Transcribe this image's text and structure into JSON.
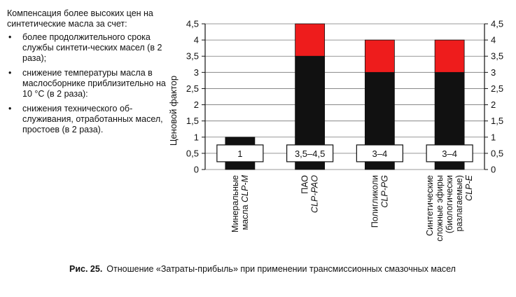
{
  "side_text": {
    "intro": "Компенсация более высоких цен на синтетические масла за счет:",
    "bullets": [
      "более продолжительного срока службы синтети-ческих масел (в 2 раза);",
      "снижение температуры масла в маслосборнике приблизительно на 10 °С (в 2 раза):",
      "снижения технического об-служивания, отработанных масел, простоев (в 2 раза)."
    ]
  },
  "caption": {
    "number": "Рис. 25.",
    "text": "Отношение «Затраты-прибыль» при применении трансмиссионных смазочных масел"
  },
  "chart_data": {
    "type": "bar",
    "stacked": true,
    "ylabel": "Ценовой фактор",
    "ylim": [
      0,
      4.5
    ],
    "yticks": [
      "0",
      "0,5",
      "1",
      "1,5",
      "2",
      "2,5",
      "3",
      "3,5",
      "4",
      "4,5"
    ],
    "right_axis": true,
    "categories": [
      {
        "lines": [
          "Минеральные",
          "масла CLP-M"
        ]
      },
      {
        "lines": [
          "ПАО",
          "CLP-PAO"
        ]
      },
      {
        "lines": [
          "Полигликоли",
          "CLP-PG"
        ]
      },
      {
        "lines": [
          "Синтетические",
          "сложные эфиры",
          "(биологически",
          "разлагаемые)",
          "CLP-E"
        ]
      }
    ],
    "series": [
      {
        "color": "#111111",
        "values": [
          1,
          3.5,
          3,
          3
        ]
      },
      {
        "color": "#ee1c1c",
        "values": [
          0,
          1,
          1,
          1
        ]
      }
    ],
    "box_labels": [
      "1",
      "3,5–4,5",
      "3–4",
      "3–4"
    ],
    "box_label_value": 0.5
  }
}
